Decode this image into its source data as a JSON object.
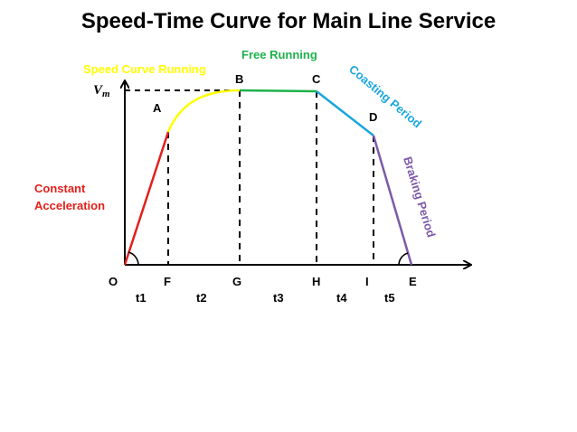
{
  "title": "Speed-Time Curve for Main Line Service",
  "vm": {
    "main": "V",
    "sub": "m"
  },
  "points": {
    "O": "O",
    "A": "A",
    "B": "B",
    "C": "C",
    "D": "D",
    "E": "E",
    "F": "F",
    "G": "G",
    "H": "H",
    "I": "I"
  },
  "intervals": {
    "t1": "t1",
    "t2": "t2",
    "t3": "t3",
    "t4": "t4",
    "t5": "t5"
  },
  "segments": {
    "constant_acceleration": {
      "line1": "Constant",
      "line2": "Acceleration",
      "color": "#e3201b"
    },
    "speed_curve": {
      "label": "Speed Curve Running",
      "color": "#ffff00"
    },
    "free_running": {
      "label": "Free Running",
      "color": "#1db14b"
    },
    "coasting": {
      "label": "Coasting Period",
      "color": "#1aa6dc"
    },
    "braking": {
      "label": "Braking Period",
      "color": "#7c5aa8"
    }
  }
}
